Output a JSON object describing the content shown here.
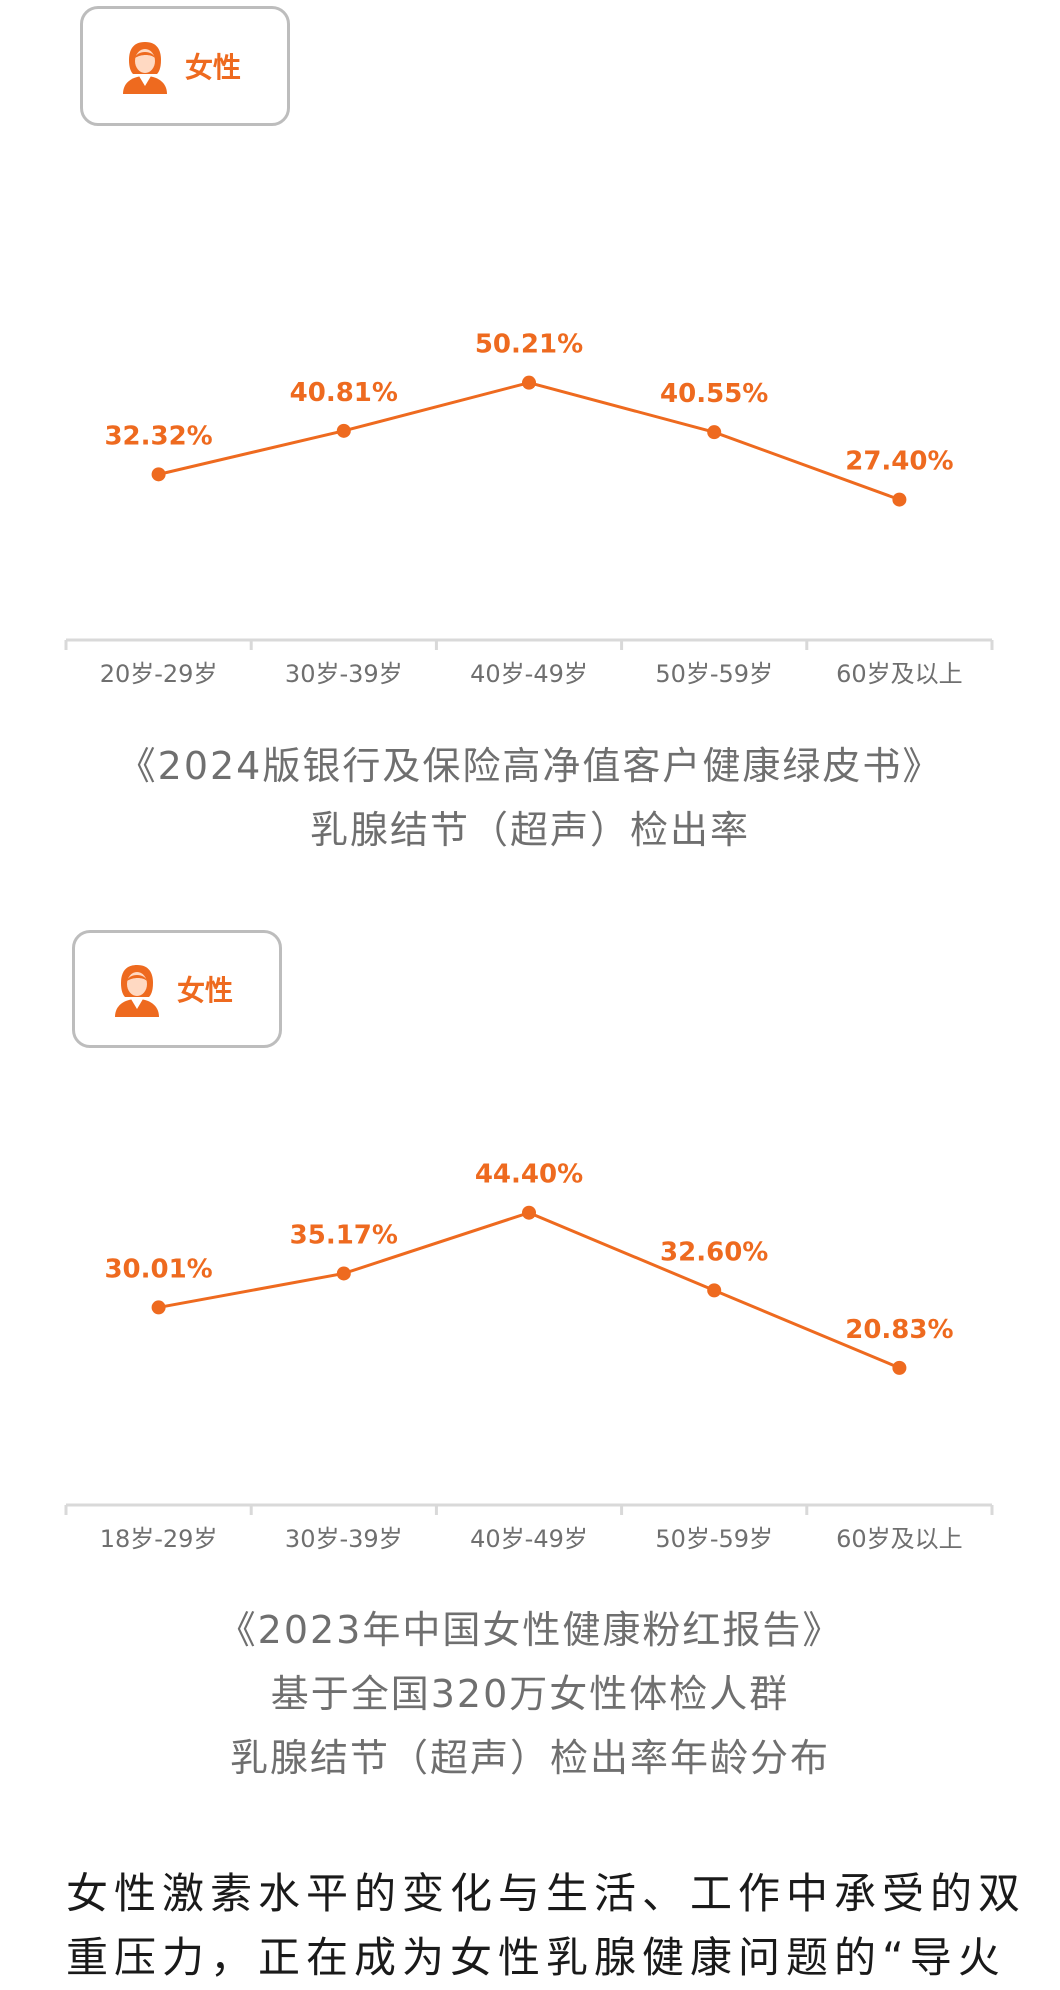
{
  "charts": [
    {
      "badge_label": "女性",
      "caption_lines": [
        "《2024版银行及保险高净值客户健康绿皮书》",
        "乳腺结节（超声）检出率"
      ],
      "chart_data": {
        "type": "line",
        "categories": [
          "20岁-29岁",
          "30岁-39岁",
          "40岁-49岁",
          "50岁-59岁",
          "60岁及以上"
        ],
        "values": [
          32.32,
          40.81,
          50.21,
          40.55,
          27.4
        ],
        "data_labels": [
          "32.32%",
          "40.81%",
          "50.21%",
          "40.55%",
          "27.40%"
        ],
        "ylim": [
          0,
          80
        ],
        "color": "#ee6a1f"
      }
    },
    {
      "badge_label": "女性",
      "caption_lines": [
        "《2023年中国女性健康粉红报告》",
        "基于全国320万女性体检人群",
        "乳腺结节（超声）检出率年龄分布"
      ],
      "chart_data": {
        "type": "line",
        "categories": [
          "18岁-29岁",
          "30岁-39岁",
          "40岁-49岁",
          "50岁-59岁",
          "60岁及以上"
        ],
        "values": [
          30.01,
          35.17,
          44.4,
          32.6,
          20.83
        ],
        "data_labels": [
          "30.01%",
          "35.17%",
          "44.40%",
          "32.60%",
          "20.83%"
        ],
        "ylim": [
          0,
          60
        ],
        "color": "#ee6a1f"
      }
    }
  ],
  "body_text": [
    "女性激素水平的变化与生活、工作中承受的双",
    "重压力，正在成为女性乳腺健康问题的“导火"
  ],
  "icons": {
    "badge_icon": "woman-avatar-icon"
  }
}
